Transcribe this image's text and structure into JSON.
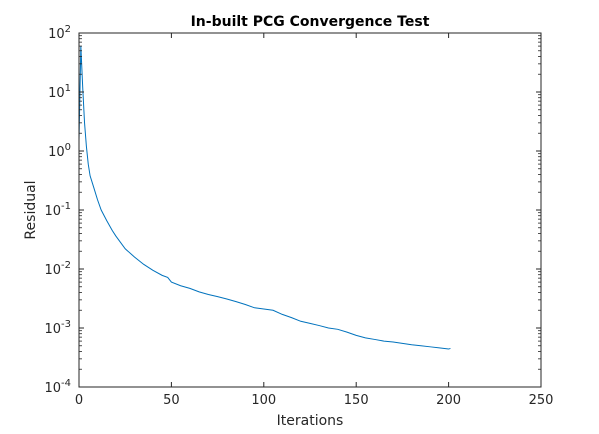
{
  "chart_data": {
    "type": "line",
    "title": "In-built PCG Convergence Test",
    "xlabel": "Iterations",
    "ylabel": "Residual",
    "xlim": [
      0,
      250
    ],
    "ylim": [
      0.0001,
      100
    ],
    "yscale": "log",
    "grid": false,
    "x_ticks": [
      0,
      50,
      100,
      150,
      200,
      250
    ],
    "x_tick_labels": [
      "0",
      "50",
      "100",
      "150",
      "200",
      "250"
    ],
    "y_ticks": [
      0.0001,
      0.001,
      0.01,
      0.1,
      1,
      10,
      100
    ],
    "y_tick_labels": [
      {
        "base": "10",
        "exp": "-4"
      },
      {
        "base": "10",
        "exp": "-3"
      },
      {
        "base": "10",
        "exp": "-2"
      },
      {
        "base": "10",
        "exp": "-1"
      },
      {
        "base": "10",
        "exp": "0"
      },
      {
        "base": "10",
        "exp": "1"
      },
      {
        "base": "10",
        "exp": "2"
      }
    ],
    "line_color": "#0072BD",
    "series": [
      {
        "x": [
          0,
          1,
          2,
          3,
          4,
          5,
          6,
          8,
          10,
          12,
          15,
          18,
          20,
          25,
          30,
          35,
          40,
          45,
          48,
          50,
          55,
          60,
          65,
          70,
          75,
          80,
          85,
          90,
          95,
          100,
          105,
          110,
          115,
          120,
          125,
          130,
          135,
          140,
          145,
          150,
          155,
          160,
          165,
          170,
          175,
          180,
          185,
          190,
          195,
          200,
          201
        ],
        "y": [
          1.5,
          60,
          12,
          3.0,
          1.2,
          0.6,
          0.38,
          0.24,
          0.15,
          0.1,
          0.066,
          0.045,
          0.036,
          0.022,
          0.016,
          0.012,
          0.0095,
          0.0078,
          0.0072,
          0.006,
          0.0052,
          0.0047,
          0.0041,
          0.0037,
          0.0034,
          0.0031,
          0.0028,
          0.0025,
          0.0022,
          0.0021,
          0.002,
          0.0017,
          0.0015,
          0.0013,
          0.0012,
          0.0011,
          0.001,
          0.00095,
          0.00085,
          0.00075,
          0.00068,
          0.00064,
          0.0006,
          0.00058,
          0.00055,
          0.00052,
          0.0005,
          0.00048,
          0.00046,
          0.00044,
          0.00045
        ]
      }
    ]
  }
}
